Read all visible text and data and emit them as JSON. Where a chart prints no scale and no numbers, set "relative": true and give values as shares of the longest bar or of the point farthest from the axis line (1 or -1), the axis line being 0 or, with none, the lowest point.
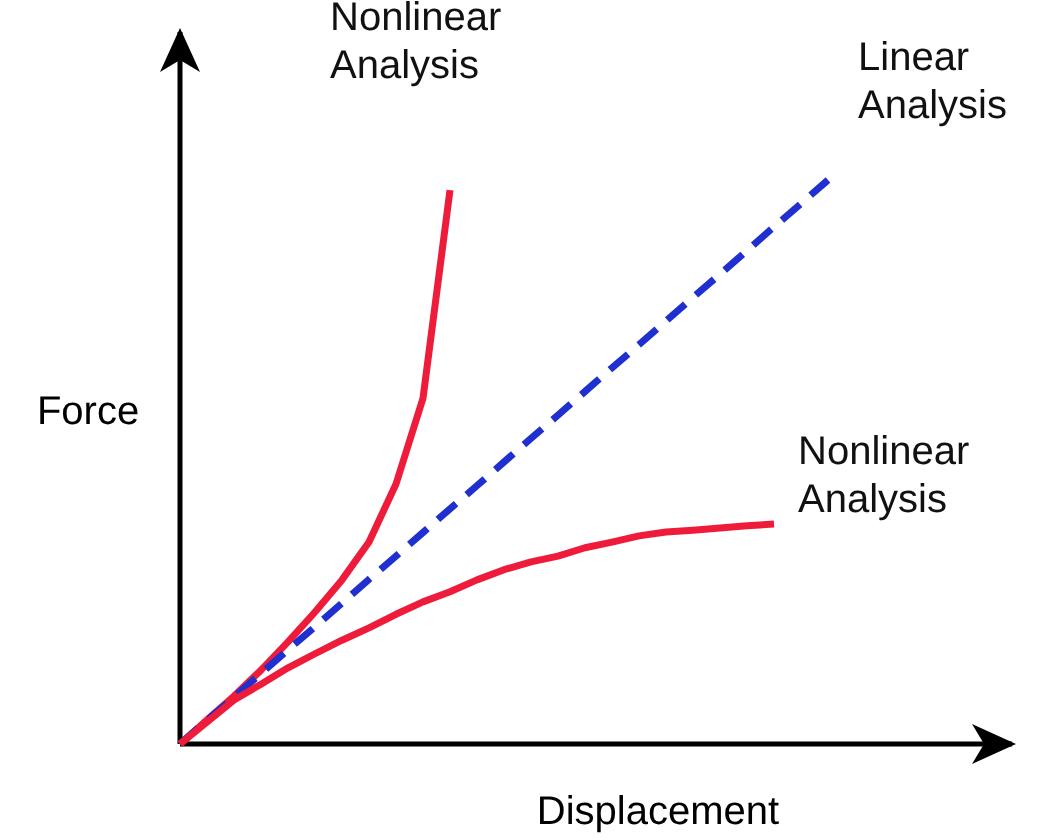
{
  "chart_data": {
    "type": "line",
    "relative": true,
    "xlabel": "Displacement",
    "ylabel": "Force",
    "legend": false,
    "marker": "none",
    "categories": [
      null,
      null,
      null,
      null,
      null,
      null,
      null,
      null,
      null,
      null,
      null,
      null,
      null,
      null,
      null,
      null,
      null,
      null,
      null,
      null,
      null,
      null,
      null,
      null,
      null
    ],
    "series": [
      {
        "name": "Nonlinear Analysis",
        "color": "#ee1c3a",
        "line_style": "solid",
        "values": [
          0,
          0.043,
          0.085,
          0.131,
          0.181,
          0.234,
          0.291,
          0.358,
          0.461,
          0.613,
          0.982,
          null,
          null,
          null,
          null,
          null,
          null,
          null,
          null,
          null,
          null,
          null,
          null,
          null,
          null
        ]
      },
      {
        "name": "Linear Analysis",
        "color": "#1f2fd0",
        "line_style": "dashed",
        "values": [
          0,
          0.042,
          0.083,
          0.125,
          0.167,
          0.208,
          0.25,
          0.292,
          0.333,
          0.375,
          0.417,
          0.458,
          0.5,
          0.542,
          0.583,
          0.625,
          0.667,
          0.708,
          0.75,
          0.792,
          0.833,
          0.875,
          0.917,
          0.958,
          1
        ]
      },
      {
        "name": "Nonlinear Analysis",
        "color": "#ee1c3a",
        "line_style": "solid",
        "values": [
          0,
          0.039,
          0.078,
          0.106,
          0.135,
          0.16,
          0.184,
          0.206,
          0.23,
          0.252,
          0.27,
          0.291,
          0.309,
          0.323,
          0.333,
          0.348,
          0.358,
          0.369,
          0.376,
          0.379,
          0.383,
          0.387,
          0.39,
          null,
          null
        ]
      }
    ]
  }
}
